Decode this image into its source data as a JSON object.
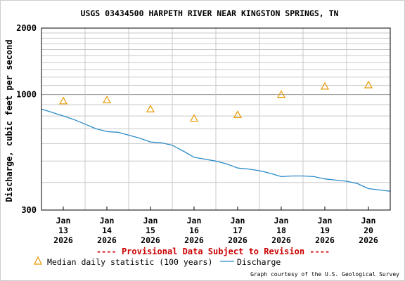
{
  "chart_data": {
    "type": "line",
    "title": "USGS 03434500 HARPETH RIVER NEAR KINGSTON SPRINGS, TN",
    "ylabel": "Discharge, cubic feet per second",
    "xlabel": "",
    "y_scale": "log",
    "ylim": [
      300,
      2000
    ],
    "y_tick_labels": [
      "2000",
      "1000",
      "300"
    ],
    "y_tick_values": [
      2000,
      1000,
      300
    ],
    "y_minor_grid_values": [
      400,
      500,
      600,
      700,
      800,
      900,
      1100,
      1200,
      1300,
      1400,
      1500,
      1600,
      1700,
      1800,
      1900
    ],
    "xlim": [
      "2026-01-12 12:00",
      "2026-01-20 12:00"
    ],
    "x_ticks": [
      {
        "date": "2026-01-13",
        "month": "Jan",
        "day": "13",
        "year": "2026"
      },
      {
        "date": "2026-01-14",
        "month": "Jan",
        "day": "14",
        "year": "2026"
      },
      {
        "date": "2026-01-15",
        "month": "Jan",
        "day": "15",
        "year": "2026"
      },
      {
        "date": "2026-01-16",
        "month": "Jan",
        "day": "16",
        "year": "2026"
      },
      {
        "date": "2026-01-17",
        "month": "Jan",
        "day": "17",
        "year": "2026"
      },
      {
        "date": "2026-01-18",
        "month": "Jan",
        "day": "18",
        "year": "2026"
      },
      {
        "date": "2026-01-19",
        "month": "Jan",
        "day": "19",
        "year": "2026"
      },
      {
        "date": "2026-01-20",
        "month": "Jan",
        "day": "20",
        "year": "2026"
      }
    ],
    "grid": true,
    "legend_placement": "bottom-left",
    "series": [
      {
        "name": "Median daily statistic (100 years)",
        "kind": "marker",
        "color": "#e69a00",
        "points": [
          {
            "x": "2026-01-13",
            "y": 935
          },
          {
            "x": "2026-01-14",
            "y": 945
          },
          {
            "x": "2026-01-15",
            "y": 860
          },
          {
            "x": "2026-01-16",
            "y": 780
          },
          {
            "x": "2026-01-17",
            "y": 810
          },
          {
            "x": "2026-01-18",
            "y": 1000
          },
          {
            "x": "2026-01-19",
            "y": 1090
          },
          {
            "x": "2026-01-20",
            "y": 1105
          }
        ]
      },
      {
        "name": "Discharge",
        "kind": "line",
        "color": "#2a8bc8",
        "points": [
          {
            "x": "2026-01-12 12:00",
            "y": 860
          },
          {
            "x": "2026-01-12 18:00",
            "y": 830
          },
          {
            "x": "2026-01-13 00:00",
            "y": 800
          },
          {
            "x": "2026-01-13 06:00",
            "y": 770
          },
          {
            "x": "2026-01-13 12:00",
            "y": 735
          },
          {
            "x": "2026-01-13 18:00",
            "y": 700
          },
          {
            "x": "2026-01-14 00:00",
            "y": 680
          },
          {
            "x": "2026-01-14 06:00",
            "y": 675
          },
          {
            "x": "2026-01-14 12:00",
            "y": 655
          },
          {
            "x": "2026-01-14 18:00",
            "y": 635
          },
          {
            "x": "2026-01-15 00:00",
            "y": 610
          },
          {
            "x": "2026-01-15 06:00",
            "y": 605
          },
          {
            "x": "2026-01-15 12:00",
            "y": 590
          },
          {
            "x": "2026-01-15 18:00",
            "y": 555
          },
          {
            "x": "2026-01-16 00:00",
            "y": 520
          },
          {
            "x": "2026-01-16 06:00",
            "y": 510
          },
          {
            "x": "2026-01-16 12:00",
            "y": 500
          },
          {
            "x": "2026-01-16 18:00",
            "y": 485
          },
          {
            "x": "2026-01-17 00:00",
            "y": 465
          },
          {
            "x": "2026-01-17 06:00",
            "y": 460
          },
          {
            "x": "2026-01-17 12:00",
            "y": 452
          },
          {
            "x": "2026-01-17 18:00",
            "y": 440
          },
          {
            "x": "2026-01-18 00:00",
            "y": 425
          },
          {
            "x": "2026-01-18 06:00",
            "y": 428
          },
          {
            "x": "2026-01-18 12:00",
            "y": 428
          },
          {
            "x": "2026-01-18 18:00",
            "y": 425
          },
          {
            "x": "2026-01-19 00:00",
            "y": 415
          },
          {
            "x": "2026-01-19 06:00",
            "y": 410
          },
          {
            "x": "2026-01-19 12:00",
            "y": 405
          },
          {
            "x": "2026-01-19 18:00",
            "y": 395
          },
          {
            "x": "2026-01-20 00:00",
            "y": 375
          },
          {
            "x": "2026-01-20 06:00",
            "y": 370
          },
          {
            "x": "2026-01-20 12:00",
            "y": 365
          }
        ]
      }
    ]
  },
  "notice": "---- Provisional Data Subject to Revision ----",
  "notice_color": "#cc0000",
  "legend": {
    "median_label": "Median daily statistic (100 years)",
    "discharge_label": "Discharge"
  },
  "credit": "Graph courtesy of the U.S. Geological Survey"
}
